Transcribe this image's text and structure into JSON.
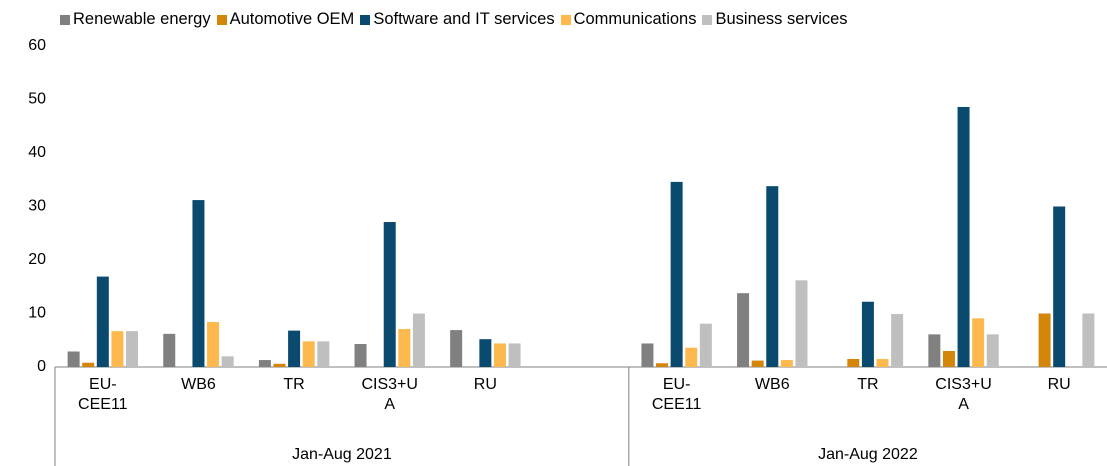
{
  "chart_data": {
    "type": "bar",
    "groups": [
      {
        "label": "Jan-Aug 2021",
        "categories": [
          "EU-CEE11",
          "WB6",
          "TR",
          "CIS3+UA",
          "RU",
          null
        ]
      },
      {
        "label": "Jan-Aug 2022",
        "categories": [
          "EU-CEE11",
          "WB6",
          "TR",
          "CIS3+UA",
          "RU"
        ]
      }
    ],
    "series": [
      {
        "name": "Renewable energy",
        "color": "#808080",
        "values": [
          2.9,
          6.2,
          1.3,
          4.3,
          6.9,
          null,
          4.4,
          13.8,
          0,
          6.1,
          0
        ]
      },
      {
        "name": "Automotive OEM",
        "color": "#d4860b",
        "values": [
          0.8,
          0,
          0.6,
          0,
          0,
          null,
          0.7,
          1.2,
          1.5,
          3.0,
          10.0
        ]
      },
      {
        "name": "Software and IT services",
        "color": "#0b4a6f",
        "values": [
          16.9,
          31.2,
          6.8,
          27.1,
          5.2,
          null,
          34.6,
          33.8,
          12.2,
          48.6,
          30.0
        ]
      },
      {
        "name": "Communications",
        "color": "#fdb94d",
        "values": [
          6.7,
          8.4,
          4.8,
          7.1,
          4.4,
          null,
          3.6,
          1.3,
          1.5,
          9.1,
          0
        ]
      },
      {
        "name": "Business services",
        "color": "#bfbfbf",
        "values": [
          6.7,
          2.0,
          4.8,
          10.0,
          4.4,
          null,
          8.1,
          16.2,
          9.9,
          6.1,
          10.0
        ]
      }
    ],
    "ylim": [
      0,
      60
    ],
    "yticks": [
      0,
      10,
      20,
      30,
      40,
      50,
      60
    ],
    "grid": false,
    "legend": "top"
  }
}
